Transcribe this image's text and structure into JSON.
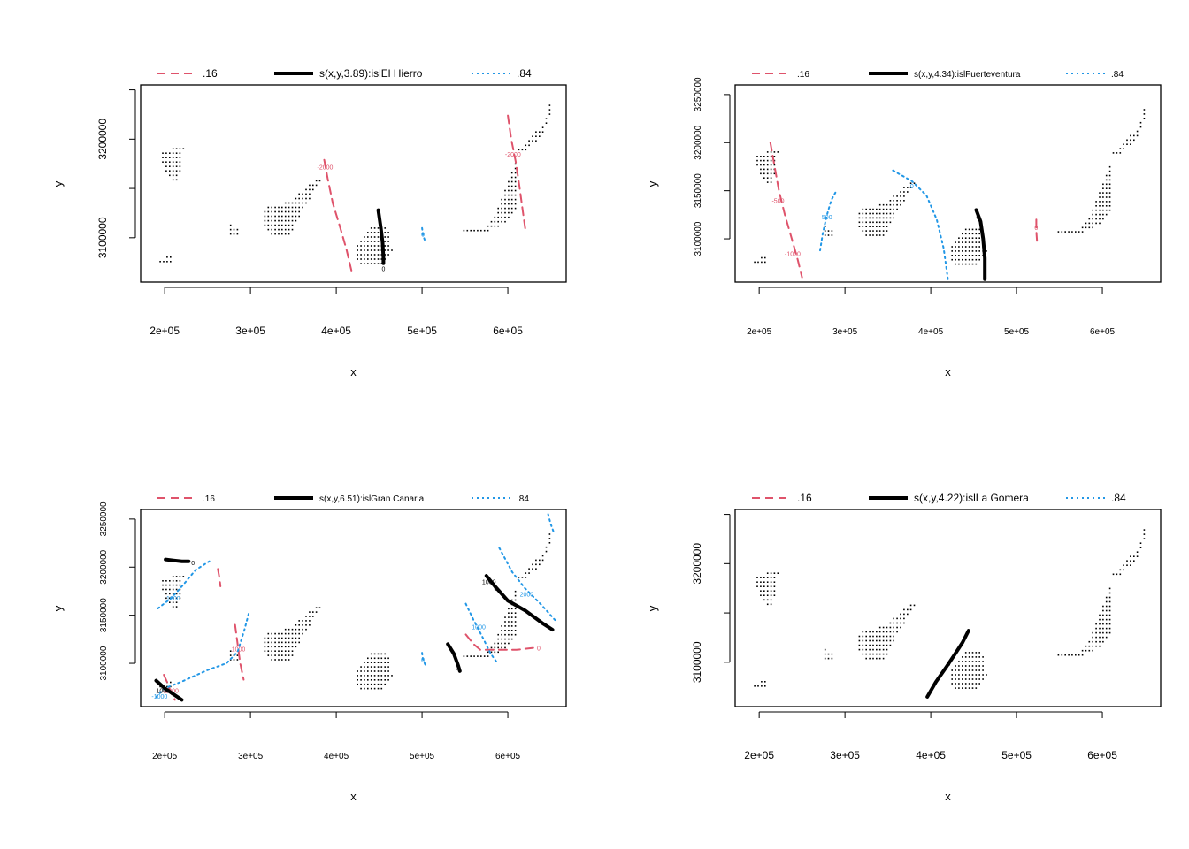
{
  "colors": {
    "lower": "#df536b",
    "fit": "#000000",
    "upper": "#2297e6",
    "points": "#000000",
    "frame": "#000000"
  },
  "chart_data": [
    {
      "type": "contour",
      "legend": {
        "lower": ".16",
        "fit": "s(x,y,3.89):islEl Hierro",
        "upper": ".84"
      },
      "xlabel": "x",
      "ylabel": "y",
      "xlim": [
        172000,
        668000
      ],
      "ylim": [
        3055000,
        3255000
      ],
      "xticks": [
        200000,
        300000,
        400000,
        500000,
        600000
      ],
      "xtick_labels": [
        "2e+05",
        "3e+05",
        "4e+05",
        "5e+05",
        "6e+05"
      ],
      "yticks": [
        3100000,
        3150000,
        3200000,
        3250000
      ],
      "ytick_labels": [
        "3100000",
        "",
        "3200000",
        ""
      ],
      "fit_lines": [
        {
          "points": [
            [
              449000,
              3128000
            ],
            [
              452000,
              3110000
            ],
            [
              454000,
              3095000
            ],
            [
              455000,
              3080000
            ],
            [
              455000,
              3074000
            ]
          ],
          "labels": [
            {
              "text": "0",
              "x": 455000,
              "y": 3069000
            }
          ]
        }
      ],
      "lower_lines": [
        {
          "points": [
            [
              386000,
              3179000
            ],
            [
              390000,
              3160000
            ],
            [
              396000,
              3135000
            ],
            [
              404000,
              3112000
            ],
            [
              412000,
              3088000
            ],
            [
              419000,
              3062000
            ]
          ],
          "labels": [
            {
              "text": "-2000",
              "x": 387000,
              "y": 3172000
            }
          ]
        },
        {
          "points": [
            [
              600000,
              3224000
            ],
            [
              604000,
              3200000
            ],
            [
              609000,
              3178000
            ],
            [
              613000,
              3155000
            ],
            [
              617000,
              3130000
            ],
            [
              621000,
              3105000
            ]
          ],
          "labels": [
            {
              "text": "-2000",
              "x": 606000,
              "y": 3185000
            }
          ]
        }
      ],
      "upper_lines": [
        {
          "points": [
            [
              500000,
              3110000
            ],
            [
              501000,
              3103000
            ],
            [
              503000,
              3098000
            ]
          ],
          "labels": [
            {
              "text": "0",
              "x": 501000,
              "y": 3104000
            }
          ]
        }
      ]
    },
    {
      "type": "contour",
      "legend": {
        "lower": ".16",
        "fit": "s(x,y,4.34):islFuerteventura",
        "upper": ".84"
      },
      "xlabel": "x",
      "ylabel": "y",
      "xlim": [
        172000,
        668000
      ],
      "ylim": [
        3055000,
        3260000
      ],
      "xticks": [
        200000,
        300000,
        400000,
        500000,
        600000
      ],
      "xtick_labels": [
        "2e+05",
        "3e+05",
        "4e+05",
        "5e+05",
        "6e+05"
      ],
      "yticks": [
        3100000,
        3150000,
        3200000,
        3250000
      ],
      "ytick_labels": [
        "3100000",
        "3150000",
        "3200000",
        "3250000"
      ],
      "fit_lines": [
        {
          "points": [
            [
              453000,
              3130000
            ],
            [
              458000,
              3118000
            ],
            [
              461000,
              3100000
            ],
            [
              463000,
              3080000
            ],
            [
              463000,
              3058000
            ]
          ],
          "labels": [
            {
              "text": "0",
              "x": 455000,
              "y": 3123000
            }
          ]
        }
      ],
      "lower_lines": [
        {
          "points": [
            [
              213000,
              3200000
            ],
            [
              218000,
              3175000
            ],
            [
              223000,
              3150000
            ],
            [
              230000,
              3125000
            ],
            [
              238000,
              3100000
            ],
            [
              245000,
              3078000
            ],
            [
              250000,
              3060000
            ]
          ],
          "labels": [
            {
              "text": "-500",
              "x": 222000,
              "y": 3140000
            },
            {
              "text": "-1000",
              "x": 239000,
              "y": 3085000
            }
          ]
        },
        {
          "points": [
            [
              523000,
              3120000
            ],
            [
              523000,
              3108000
            ],
            [
              524000,
              3095000
            ]
          ],
          "labels": [
            {
              "text": "0",
              "x": 523000,
              "y": 3112000
            }
          ]
        }
      ],
      "upper_lines": [
        {
          "points": [
            [
              271000,
              3088000
            ],
            [
              274000,
              3105000
            ],
            [
              279000,
              3125000
            ],
            [
              284000,
              3140000
            ],
            [
              290000,
              3150000
            ]
          ],
          "labels": [
            {
              "text": "500",
              "x": 279000,
              "y": 3123000
            }
          ]
        },
        {
          "points": [
            [
              356000,
              3171000
            ],
            [
              378000,
              3160000
            ],
            [
              395000,
              3145000
            ],
            [
              407000,
              3120000
            ],
            [
              415000,
              3090000
            ],
            [
              420000,
              3058000
            ]
          ],
          "labels": [
            {
              "text": "0",
              "x": 378000,
              "y": 3155000
            }
          ]
        }
      ]
    },
    {
      "type": "contour",
      "legend": {
        "lower": ".16",
        "fit": "s(x,y,6.51):islGran Canaria",
        "upper": ".84"
      },
      "xlabel": "x",
      "ylabel": "y",
      "xlim": [
        172000,
        668000
      ],
      "ylim": [
        3055000,
        3260000
      ],
      "xticks": [
        200000,
        300000,
        400000,
        500000,
        600000
      ],
      "xtick_labels": [
        "2e+05",
        "3e+05",
        "4e+05",
        "5e+05",
        "6e+05"
      ],
      "yticks": [
        3100000,
        3150000,
        3200000,
        3250000
      ],
      "ytick_labels": [
        "3100000",
        "3150000",
        "3200000",
        "3250000"
      ],
      "fit_lines": [
        {
          "points": [
            [
              201000,
              3208000
            ],
            [
              210000,
              3207000
            ],
            [
              220000,
              3206000
            ],
            [
              228000,
              3206000
            ]
          ],
          "labels": [
            {
              "text": "0",
              "x": 233000,
              "y": 3205000
            }
          ]
        },
        {
          "points": [
            [
              575000,
              3191000
            ],
            [
              585000,
              3180000
            ],
            [
              600000,
              3165000
            ],
            [
              620000,
              3155000
            ],
            [
              640000,
              3142000
            ],
            [
              652000,
              3135000
            ]
          ],
          "labels": [
            {
              "text": "1000",
              "x": 578000,
              "y": 3185000
            },
            {
              "text": "0",
              "x": 586000,
              "y": 3178000
            }
          ]
        },
        {
          "points": [
            [
              530000,
              3120000
            ],
            [
              537000,
              3110000
            ],
            [
              542000,
              3098000
            ],
            [
              544000,
              3092000
            ]
          ],
          "labels": [
            {
              "text": "0",
              "x": 541000,
              "y": 3096000
            }
          ]
        },
        {
          "points": [
            [
              190000,
              3082000
            ],
            [
              200000,
              3074000
            ],
            [
              210000,
              3068000
            ],
            [
              220000,
              3062000
            ]
          ],
          "labels": [
            {
              "text": "1000",
              "x": 198000,
              "y": 3072000
            }
          ]
        }
      ],
      "lower_lines": [
        {
          "points": [
            [
              262000,
              3198000
            ],
            [
              264000,
              3188000
            ],
            [
              265000,
              3180000
            ]
          ],
          "labels": []
        },
        {
          "points": [
            [
              282000,
              3140000
            ],
            [
              285000,
              3120000
            ],
            [
              288000,
              3100000
            ],
            [
              292000,
              3083000
            ]
          ],
          "labels": [
            {
              "text": "1000",
              "x": 286000,
              "y": 3115000
            }
          ]
        },
        {
          "points": [
            [
              551000,
              3130000
            ],
            [
              560000,
              3120000
            ],
            [
              568000,
              3114000
            ],
            [
              590000,
              3114000
            ],
            [
              610000,
              3114000
            ],
            [
              630000,
              3116000
            ]
          ],
          "labels": [
            {
              "text": "0",
              "x": 636000,
              "y": 3116000
            }
          ]
        },
        {
          "points": [
            [
              199000,
              3088000
            ],
            [
              203000,
              3080000
            ],
            [
              207000,
              3070000
            ],
            [
              212000,
              3062000
            ]
          ],
          "labels": [
            {
              "text": "-1000",
              "x": 207000,
              "y": 3072000
            }
          ]
        }
      ],
      "upper_lines": [
        {
          "points": [
            [
              192000,
              3157000
            ],
            [
              208000,
              3168000
            ],
            [
              222000,
              3182000
            ],
            [
              236000,
              3197000
            ],
            [
              252000,
              3206000
            ]
          ],
          "labels": [
            {
              "text": "1000",
              "x": 210000,
              "y": 3168000
            }
          ]
        },
        {
          "points": [
            [
              190000,
              3065000
            ],
            [
              200000,
              3074000
            ],
            [
              220000,
              3081000
            ],
            [
              250000,
              3093000
            ],
            [
              272000,
              3100000
            ],
            [
              285000,
              3112000
            ],
            [
              293000,
              3135000
            ],
            [
              298000,
              3152000
            ]
          ],
          "labels": [
            {
              "text": "-1000",
              "x": 194000,
              "y": 3066000
            }
          ]
        },
        {
          "points": [
            [
              500000,
              3111000
            ],
            [
              501000,
              3104000
            ],
            [
              504000,
              3098000
            ]
          ],
          "labels": [
            {
              "text": "0",
              "x": 501000,
              "y": 3104000
            }
          ]
        },
        {
          "points": [
            [
              590000,
              3220000
            ],
            [
              605000,
              3195000
            ],
            [
              620000,
              3178000
            ],
            [
              640000,
              3160000
            ],
            [
              655000,
              3145000
            ]
          ],
          "labels": [
            {
              "text": "2000",
              "x": 622000,
              "y": 3172000
            }
          ]
        },
        {
          "points": [
            [
              551000,
              3162000
            ],
            [
              560000,
              3145000
            ],
            [
              570000,
              3128000
            ],
            [
              580000,
              3110000
            ],
            [
              588000,
              3100000
            ]
          ],
          "labels": [
            {
              "text": "1000",
              "x": 566000,
              "y": 3138000
            }
          ]
        },
        {
          "points": [
            [
              647000,
              3255000
            ],
            [
              650000,
              3245000
            ],
            [
              654000,
              3235000
            ]
          ],
          "labels": []
        }
      ]
    },
    {
      "type": "contour",
      "legend": {
        "lower": ".16",
        "fit": "s(x,y,4.22):islLa Gomera",
        "upper": ".84"
      },
      "xlabel": "x",
      "ylabel": "y",
      "xlim": [
        172000,
        668000
      ],
      "ylim": [
        3055000,
        3255000
      ],
      "xticks": [
        200000,
        300000,
        400000,
        500000,
        600000
      ],
      "xtick_labels": [
        "2e+05",
        "3e+05",
        "4e+05",
        "5e+05",
        "6e+05"
      ],
      "yticks": [
        3100000,
        3150000,
        3200000,
        3250000
      ],
      "ytick_labels": [
        "3100000",
        "",
        "3200000",
        ""
      ],
      "fit_lines": [
        {
          "points": [
            [
              396000,
              3065000
            ],
            [
              406000,
              3080000
            ],
            [
              418000,
              3095000
            ],
            [
              428000,
              3108000
            ],
            [
              437000,
              3120000
            ],
            [
              444000,
              3132000
            ]
          ],
          "labels": [
            {
              "text": "0",
              "x": 421000,
              "y": 3099000
            }
          ]
        }
      ],
      "lower_lines": [],
      "upper_lines": []
    }
  ]
}
